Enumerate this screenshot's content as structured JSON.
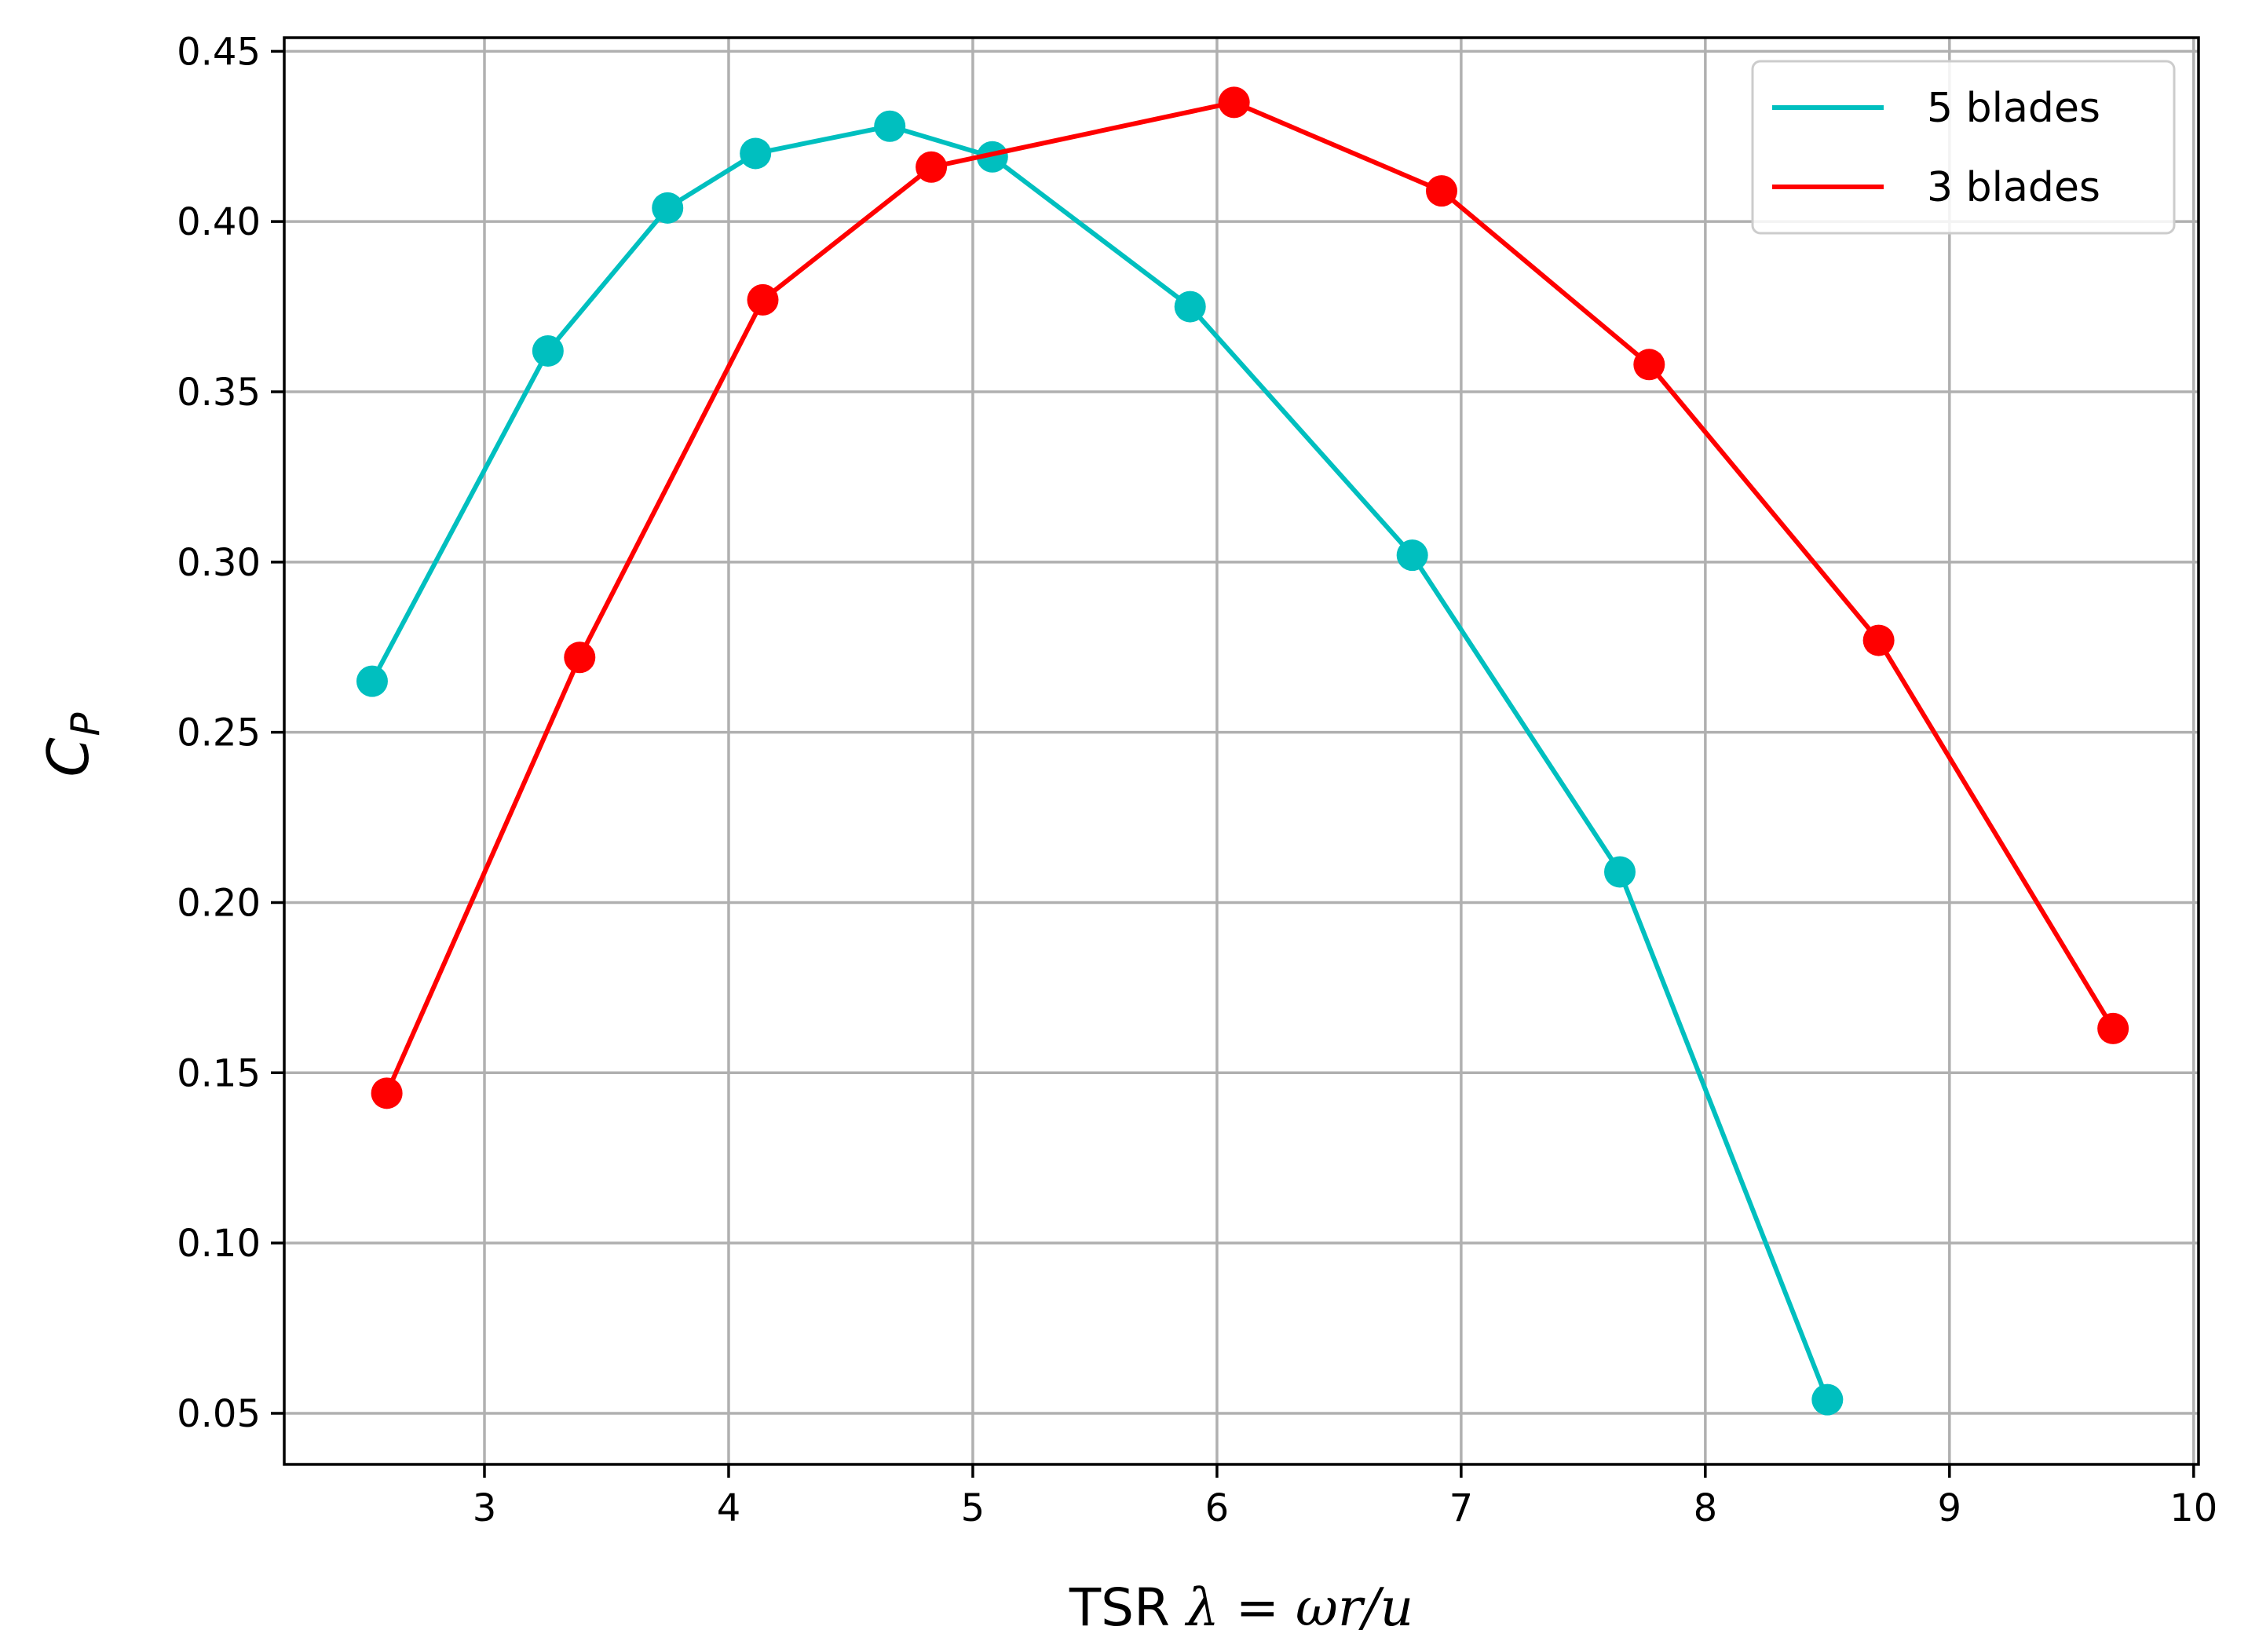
{
  "chart_data": {
    "type": "line",
    "title": "",
    "xlabel": {
      "prefix": "TSR ",
      "math": "λ = ωr/u"
    },
    "ylabel": {
      "main": "C",
      "sub": "P"
    },
    "xlim": [
      2.18,
      10.02
    ],
    "ylim": [
      0.035,
      0.454
    ],
    "xticks": [
      3,
      4,
      5,
      6,
      7,
      8,
      9,
      10
    ],
    "xtick_labels": [
      "3",
      "4",
      "5",
      "6",
      "7",
      "8",
      "9",
      "10"
    ],
    "yticks": [
      0.05,
      0.1,
      0.15,
      0.2,
      0.25,
      0.3,
      0.35,
      0.4,
      0.45
    ],
    "ytick_labels": [
      "0.05",
      "0.10",
      "0.15",
      "0.20",
      "0.25",
      "0.30",
      "0.35",
      "0.40",
      "0.45"
    ],
    "grid": true,
    "legend_position": "top-right",
    "series": [
      {
        "name": "5 blades",
        "color": "#00bfbf",
        "marker": "circle",
        "x": [
          2.54,
          3.26,
          3.75,
          4.11,
          4.66,
          5.08,
          5.89,
          6.8,
          7.65,
          8.5
        ],
        "y": [
          0.265,
          0.362,
          0.404,
          0.42,
          0.428,
          0.419,
          0.375,
          0.302,
          0.209,
          0.054
        ]
      },
      {
        "name": "3 blades",
        "color": "#ff0000",
        "marker": "circle",
        "x": [
          2.6,
          3.39,
          4.14,
          4.83,
          6.07,
          6.92,
          7.77,
          8.71,
          9.67
        ],
        "y": [
          0.144,
          0.272,
          0.377,
          0.416,
          0.435,
          0.409,
          0.358,
          0.277,
          0.163
        ]
      }
    ]
  }
}
